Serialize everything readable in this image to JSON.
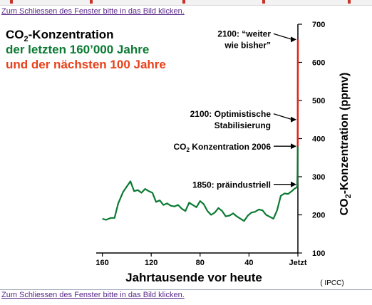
{
  "page": {
    "hint_top": "Zum Schliessen des Fenster bitte in das Bild klicken.",
    "hint_bottom": "Zum Schliessen des Fenster bitte in das Bild klicken."
  },
  "chart_data": {
    "type": "line",
    "title": {
      "co2": "CO",
      "sub": "2",
      "rest": "-Konzentration",
      "line2": "der letzten 160’000 Jahre",
      "line3": "und der nächsten 100 Jahre"
    },
    "colors": {
      "title": "#000000",
      "history": "#0a7a32",
      "future": "#e02418",
      "line2": "#0a7a32",
      "line3": "#e8401a"
    },
    "xlabel": "Jahrtausende vor heute",
    "ylabel": {
      "pre": "CO",
      "sub": "2",
      "post": "-Konzentration (ppmv)"
    },
    "x_ticks": [
      "160",
      "120",
      "80",
      "40",
      "Jetzt"
    ],
    "y_ticks": [
      "100",
      "200",
      "300",
      "400",
      "500",
      "600",
      "700"
    ],
    "xlim": [
      165,
      0
    ],
    "ylim": [
      100,
      700
    ],
    "source": "( IPCC)",
    "series": [
      {
        "x": [
          160,
          157,
          153,
          150,
          147,
          143,
          137,
          134,
          131,
          128,
          125,
          122,
          119,
          116,
          113,
          110,
          107,
          104,
          101,
          98,
          95,
          92,
          89,
          86,
          83,
          80,
          77,
          74,
          71,
          68,
          65,
          62,
          59,
          56,
          53,
          50,
          47,
          44,
          41,
          38,
          35,
          32,
          29,
          26,
          23,
          20,
          17,
          14,
          11,
          8,
          5,
          3,
          1
        ],
        "y": [
          190,
          187,
          192,
          192,
          230,
          260,
          288,
          262,
          265,
          258,
          268,
          262,
          258,
          234,
          238,
          226,
          230,
          224,
          222,
          226,
          216,
          210,
          232,
          226,
          220,
          236,
          228,
          210,
          200,
          206,
          218,
          210,
          196,
          198,
          204,
          196,
          190,
          184,
          198,
          206,
          208,
          214,
          212,
          200,
          195,
          190,
          212,
          250,
          256,
          255,
          262,
          268,
          272
        ]
      },
      {
        "x": [
          0.7,
          0.5,
          0.3,
          0.15,
          0
        ],
        "y": [
          270,
          280,
          310,
          380,
          660
        ]
      }
    ],
    "annotations": [
      {
        "text_lines": [
          "2100: “weiter",
          "wie bisher”"
        ],
        "y": 660
      },
      {
        "text_lines": [
          "2100: Optimistische",
          "Stabilisierung"
        ],
        "y": 450
      },
      {
        "pre": "CO",
        "sub": "2",
        "post": " Konzentration 2006",
        "y": 380
      },
      {
        "text_lines": [
          "1850: präindustriell"
        ],
        "y": 280
      }
    ]
  }
}
